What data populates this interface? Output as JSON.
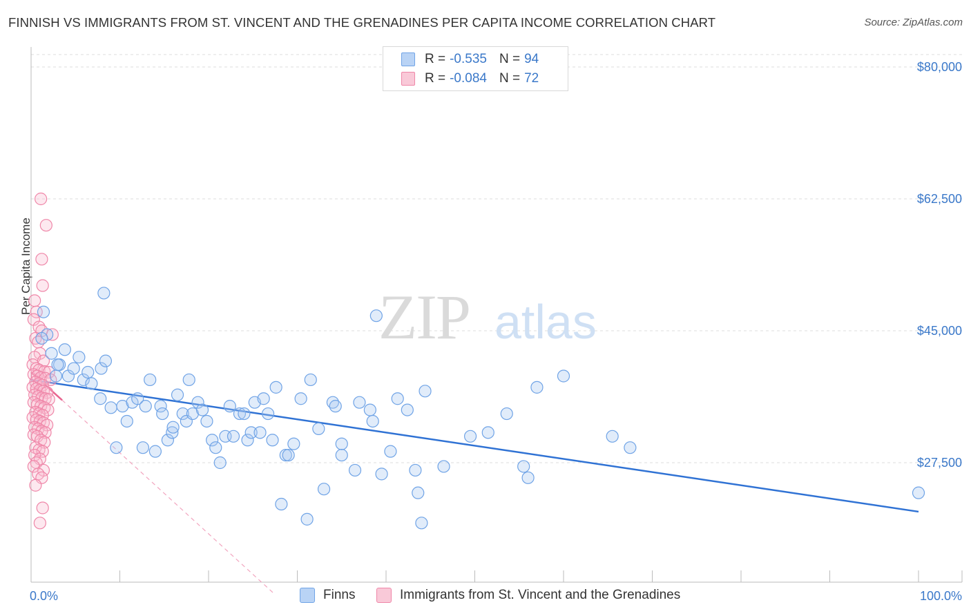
{
  "header": {
    "title": "FINNISH VS IMMIGRANTS FROM ST. VINCENT AND THE GRENADINES PER CAPITA INCOME CORRELATION CHART",
    "source": "Source: ZipAtlas.com"
  },
  "watermark": {
    "zip": "ZIP",
    "atlas": "atlas"
  },
  "legend": {
    "rows": [
      {
        "r_label": "R = ",
        "r_value": "-0.535",
        "n_label": "N = ",
        "n_value": "94"
      },
      {
        "r_label": "R = ",
        "r_value": "-0.084",
        "n_label": "N = ",
        "n_value": "72"
      }
    ]
  },
  "bottom_legend": {
    "series1": "Finns",
    "series2": "Immigrants from St. Vincent and the Grenadines"
  },
  "chart_data": {
    "type": "scatter",
    "title": "FINNISH VS IMMIGRANTS FROM ST. VINCENT AND THE GRENADINES PER CAPITA INCOME CORRELATION CHART",
    "ylabel": "Per Capita Income",
    "xlabel": "",
    "x_tick_labels": [
      "0.0%",
      "100.0%"
    ],
    "y_tick_labels": [
      "$27,500",
      "$45,000",
      "$62,500",
      "$80,000"
    ],
    "y_ticks": [
      27500,
      45000,
      62500,
      80000
    ],
    "xlim": [
      0,
      100
    ],
    "ylim": [
      10000,
      82000
    ],
    "grid": true,
    "colors": {
      "finns": "#6fa3e6",
      "finns_line": "#2f72d4",
      "svg_pink": "#ef86a8",
      "svg_line": "#e8648f",
      "tick_text": "#3a78c9"
    },
    "series": [
      {
        "name": "Finns",
        "r": -0.535,
        "n": 94,
        "trend": {
          "x": [
            0,
            100
          ],
          "y": [
            38500,
            21000
          ]
        },
        "points": [
          [
            1.4,
            47500
          ],
          [
            1.8,
            44500
          ],
          [
            2.3,
            42000
          ],
          [
            2.8,
            39000
          ],
          [
            3.2,
            40500
          ],
          [
            3.8,
            42500
          ],
          [
            4.2,
            39000
          ],
          [
            4.8,
            40000
          ],
          [
            5.4,
            41500
          ],
          [
            5.9,
            38500
          ],
          [
            6.8,
            38000
          ],
          [
            7.9,
            40000
          ],
          [
            7.8,
            36000
          ],
          [
            8.4,
            41000
          ],
          [
            8.2,
            50000
          ],
          [
            9.6,
            29500
          ],
          [
            10.3,
            35000
          ],
          [
            10.8,
            33000
          ],
          [
            11.4,
            35500
          ],
          [
            12.0,
            36000
          ],
          [
            12.6,
            29500
          ],
          [
            12.9,
            35000
          ],
          [
            13.4,
            38500
          ],
          [
            14.0,
            29000
          ],
          [
            14.6,
            35000
          ],
          [
            14.8,
            34000
          ],
          [
            15.4,
            30500
          ],
          [
            15.9,
            31500
          ],
          [
            16.5,
            36500
          ],
          [
            17.1,
            34000
          ],
          [
            17.5,
            33000
          ],
          [
            17.8,
            38500
          ],
          [
            18.2,
            34000
          ],
          [
            18.8,
            35500
          ],
          [
            19.3,
            34500
          ],
          [
            19.8,
            33000
          ],
          [
            20.4,
            30500
          ],
          [
            20.8,
            29500
          ],
          [
            21.3,
            27500
          ],
          [
            21.9,
            31000
          ],
          [
            22.4,
            35000
          ],
          [
            22.8,
            31000
          ],
          [
            23.5,
            34000
          ],
          [
            24.0,
            34000
          ],
          [
            24.4,
            30500
          ],
          [
            24.8,
            31500
          ],
          [
            25.2,
            35500
          ],
          [
            25.8,
            31500
          ],
          [
            26.2,
            36000
          ],
          [
            26.7,
            34000
          ],
          [
            27.2,
            30500
          ],
          [
            27.6,
            37500
          ],
          [
            28.2,
            22000
          ],
          [
            28.7,
            28500
          ],
          [
            29.0,
            28500
          ],
          [
            29.6,
            30000
          ],
          [
            30.4,
            36000
          ],
          [
            31.1,
            20000
          ],
          [
            31.5,
            38500
          ],
          [
            32.4,
            32000
          ],
          [
            33.0,
            24000
          ],
          [
            34.0,
            35500
          ],
          [
            34.3,
            35000
          ],
          [
            35.0,
            30000
          ],
          [
            35.0,
            28500
          ],
          [
            36.5,
            26500
          ],
          [
            37.0,
            35500
          ],
          [
            38.2,
            34500
          ],
          [
            38.5,
            33000
          ],
          [
            38.9,
            47000
          ],
          [
            39.5,
            26000
          ],
          [
            40.5,
            29000
          ],
          [
            41.3,
            36000
          ],
          [
            42.4,
            34500
          ],
          [
            43.3,
            26500
          ],
          [
            43.6,
            23500
          ],
          [
            44.0,
            19500
          ],
          [
            44.4,
            37000
          ],
          [
            46.5,
            27000
          ],
          [
            49.5,
            31000
          ],
          [
            51.5,
            31500
          ],
          [
            53.6,
            34000
          ],
          [
            55.5,
            27000
          ],
          [
            56.0,
            25500
          ],
          [
            57.0,
            37500
          ],
          [
            60.0,
            39000
          ],
          [
            65.5,
            31000
          ],
          [
            67.5,
            29500
          ],
          [
            100.0,
            23500
          ],
          [
            1.2,
            44000
          ],
          [
            3.0,
            40500
          ],
          [
            6.4,
            39500
          ],
          [
            9.0,
            34800
          ],
          [
            16.0,
            32200
          ]
        ]
      },
      {
        "name": "Immigrants from St. Vincent and the Grenadines",
        "r": -0.084,
        "n": 72,
        "trend": {
          "x": [
            0,
            3.5
          ],
          "y": [
            39500,
            35800
          ]
        },
        "trend_extension": {
          "x": [
            3.5,
            27.5
          ],
          "y": [
            35800,
            10000
          ]
        },
        "points": [
          [
            1.1,
            62500
          ],
          [
            1.7,
            59000
          ],
          [
            1.2,
            54500
          ],
          [
            1.3,
            51000
          ],
          [
            0.4,
            49000
          ],
          [
            0.6,
            47500
          ],
          [
            0.3,
            46500
          ],
          [
            0.9,
            45500
          ],
          [
            1.2,
            45000
          ],
          [
            2.4,
            44500
          ],
          [
            0.5,
            44000
          ],
          [
            0.8,
            43500
          ],
          [
            1.0,
            42000
          ],
          [
            0.4,
            41500
          ],
          [
            1.4,
            41000
          ],
          [
            0.2,
            40500
          ],
          [
            0.6,
            40000
          ],
          [
            0.9,
            39800
          ],
          [
            1.5,
            39600
          ],
          [
            2.0,
            39500
          ],
          [
            0.3,
            39200
          ],
          [
            0.7,
            39000
          ],
          [
            1.1,
            38800
          ],
          [
            1.6,
            38700
          ],
          [
            2.2,
            38500
          ],
          [
            0.5,
            38200
          ],
          [
            0.9,
            38000
          ],
          [
            1.3,
            37800
          ],
          [
            0.2,
            37500
          ],
          [
            0.6,
            37300
          ],
          [
            1.0,
            37100
          ],
          [
            1.4,
            37000
          ],
          [
            1.8,
            36800
          ],
          [
            0.4,
            36500
          ],
          [
            0.8,
            36300
          ],
          [
            1.2,
            36100
          ],
          [
            1.6,
            36000
          ],
          [
            2.0,
            35900
          ],
          [
            0.3,
            35500
          ],
          [
            0.7,
            35200
          ],
          [
            1.1,
            35000
          ],
          [
            1.5,
            34800
          ],
          [
            1.9,
            34500
          ],
          [
            0.5,
            34200
          ],
          [
            0.9,
            34000
          ],
          [
            1.3,
            33800
          ],
          [
            0.2,
            33500
          ],
          [
            0.6,
            33200
          ],
          [
            1.0,
            33000
          ],
          [
            1.4,
            32800
          ],
          [
            1.8,
            32500
          ],
          [
            0.4,
            32200
          ],
          [
            0.8,
            32000
          ],
          [
            1.2,
            31700
          ],
          [
            1.6,
            31500
          ],
          [
            0.3,
            31200
          ],
          [
            0.7,
            31000
          ],
          [
            1.1,
            30500
          ],
          [
            1.5,
            30200
          ],
          [
            0.5,
            29500
          ],
          [
            0.9,
            29200
          ],
          [
            1.3,
            29000
          ],
          [
            0.4,
            28500
          ],
          [
            1.0,
            28000
          ],
          [
            0.6,
            27500
          ],
          [
            0.3,
            27000
          ],
          [
            1.4,
            26500
          ],
          [
            0.8,
            26000
          ],
          [
            1.2,
            25500
          ],
          [
            0.5,
            24500
          ],
          [
            1.3,
            21500
          ],
          [
            1.0,
            19500
          ]
        ]
      }
    ]
  }
}
